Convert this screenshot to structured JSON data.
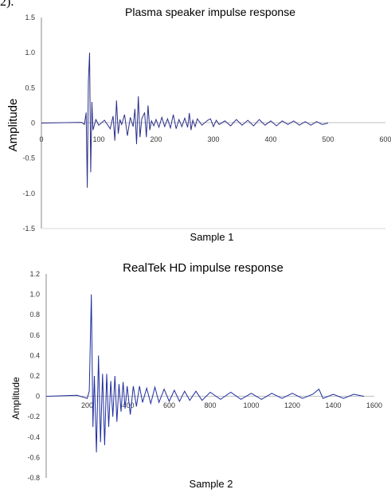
{
  "page_fragment": "2).",
  "chart_data": [
    {
      "type": "line",
      "title": "Plasma speaker impulse response",
      "xlabel": "Sample 1",
      "ylabel": "Amplitude",
      "xlim": [
        0,
        600
      ],
      "ylim": [
        -1.5,
        1.5
      ],
      "x_ticks": [
        0,
        100,
        200,
        300,
        400,
        500,
        600
      ],
      "x_tick_labels": [
        "0",
        "100",
        "200",
        "300",
        "400",
        "500",
        "600"
      ],
      "y_ticks": [
        1.5,
        1.0,
        0.5,
        0,
        -0.5,
        -1.0,
        -1.5
      ],
      "y_tick_labels": [
        "1.5",
        "1.0",
        "0.5",
        "0",
        "-0.5",
        "-1.0",
        "-1.5"
      ],
      "grid": false,
      "color": "#2b2f8a",
      "x": [
        0,
        70,
        75,
        78,
        80,
        82,
        84,
        86,
        88,
        90,
        95,
        100,
        110,
        120,
        125,
        128,
        131,
        134,
        137,
        140,
        145,
        150,
        155,
        160,
        163,
        166,
        169,
        172,
        175,
        180,
        183,
        186,
        189,
        192,
        196,
        200,
        205,
        210,
        215,
        220,
        225,
        230,
        235,
        240,
        245,
        250,
        255,
        258,
        261,
        264,
        268,
        272,
        280,
        290,
        295,
        300,
        305,
        310,
        320,
        330,
        340,
        350,
        360,
        370,
        380,
        390,
        400,
        410,
        420,
        430,
        440,
        450,
        460,
        470,
        480,
        490,
        500
      ],
      "y": [
        0,
        0.01,
        -0.02,
        0.15,
        -0.92,
        0.6,
        1.0,
        -0.7,
        0.3,
        -0.1,
        0.05,
        -0.03,
        0.04,
        -0.08,
        0.1,
        -0.25,
        0.32,
        -0.15,
        0.05,
        -0.02,
        0.12,
        -0.18,
        0.08,
        -0.05,
        0.2,
        -0.3,
        0.38,
        -0.2,
        0.06,
        0.15,
        -0.2,
        0.25,
        -0.1,
        0.03,
        -0.04,
        0.05,
        -0.06,
        0.08,
        -0.05,
        0.06,
        -0.07,
        0.12,
        -0.08,
        0.05,
        -0.05,
        0.07,
        -0.06,
        0.14,
        -0.1,
        0.04,
        -0.05,
        0.06,
        -0.03,
        0.04,
        0.06,
        -0.05,
        0.04,
        -0.02,
        0.03,
        -0.04,
        0.05,
        -0.03,
        0.04,
        -0.04,
        0.05,
        -0.03,
        0.03,
        -0.04,
        0.03,
        -0.02,
        0.03,
        -0.03,
        0.02,
        -0.03,
        0.02,
        -0.02,
        0
      ]
    },
    {
      "type": "line",
      "title": "RealTek HD impulse response",
      "xlabel": "Sample 2",
      "ylabel": "Amplitude",
      "xlim": [
        0,
        1600
      ],
      "ylim": [
        -0.8,
        1.2
      ],
      "x_ticks": [
        200,
        400,
        600,
        800,
        1000,
        1200,
        1400,
        1600
      ],
      "x_tick_labels": [
        "200",
        "400",
        "600",
        "800",
        "1000",
        "1200",
        "1400",
        "1600"
      ],
      "y_ticks": [
        1.2,
        1.0,
        0.8,
        0.6,
        0.4,
        0.2,
        0,
        -0.2,
        -0.4,
        -0.6,
        -0.8
      ],
      "y_tick_labels": [
        "1.2",
        "1.0",
        "0.8",
        "0.6",
        "0.4",
        "0.2",
        "0",
        "-0.2",
        "-0.4",
        "-0.6",
        "-0.8"
      ],
      "grid": false,
      "color": "#1f2e9e",
      "x": [
        0,
        150,
        200,
        210,
        220,
        228,
        235,
        245,
        255,
        265,
        275,
        285,
        295,
        305,
        315,
        325,
        335,
        345,
        355,
        365,
        375,
        385,
        395,
        410,
        425,
        440,
        455,
        470,
        490,
        510,
        530,
        550,
        575,
        600,
        625,
        650,
        675,
        700,
        730,
        760,
        800,
        850,
        900,
        950,
        1000,
        1050,
        1100,
        1150,
        1200,
        1250,
        1300,
        1330,
        1350,
        1400,
        1450,
        1500,
        1550
      ],
      "y": [
        0,
        0.01,
        -0.02,
        0.05,
        1.0,
        -0.3,
        0.2,
        -0.55,
        0.4,
        -0.45,
        0.22,
        -0.48,
        0.22,
        -0.3,
        0.15,
        -0.2,
        0.2,
        -0.25,
        0.12,
        -0.15,
        0.14,
        -0.12,
        0.1,
        -0.18,
        0.1,
        -0.1,
        0.1,
        -0.06,
        0.08,
        -0.07,
        0.09,
        -0.06,
        0.07,
        -0.05,
        0.06,
        -0.05,
        0.05,
        -0.04,
        0.05,
        -0.04,
        0.04,
        -0.03,
        0.04,
        -0.03,
        0.03,
        -0.03,
        0.03,
        -0.02,
        0.03,
        -0.02,
        0.02,
        0.07,
        -0.02,
        0.02,
        -0.02,
        0.02,
        0
      ]
    }
  ]
}
